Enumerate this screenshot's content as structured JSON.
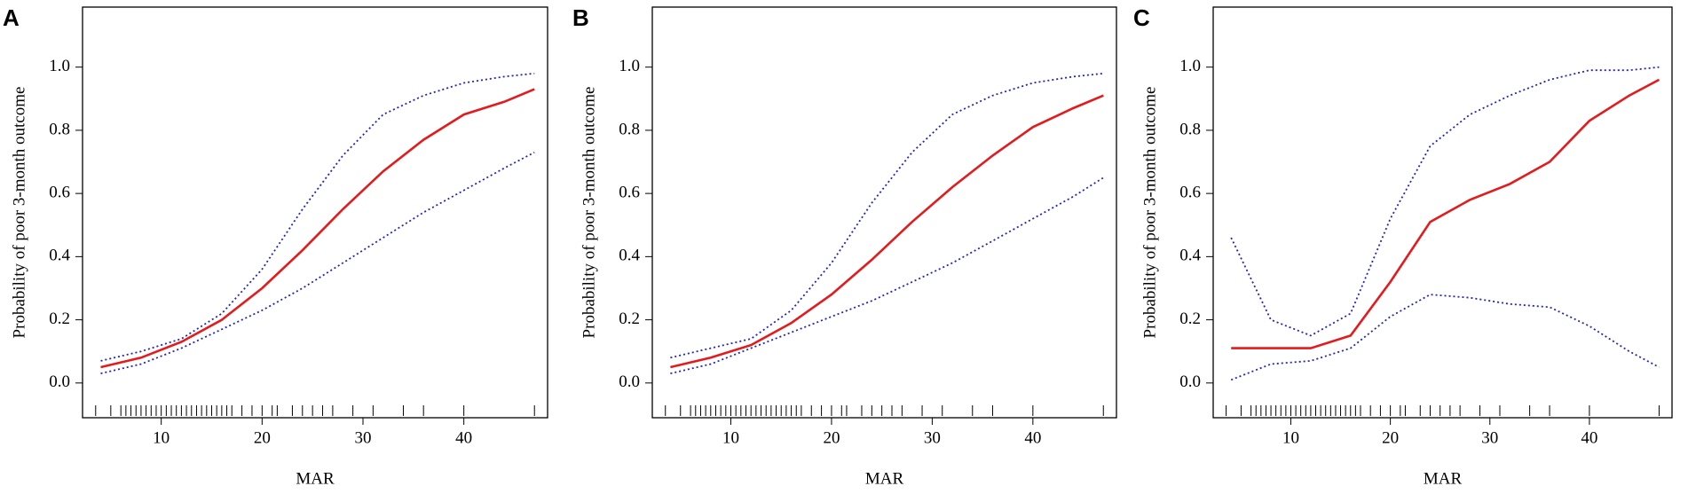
{
  "chart_data": [
    {
      "type": "line",
      "panel": "A",
      "xlabel": "MAR",
      "ylabel": "Probability of poor 3-month outcome",
      "x": [
        4,
        8,
        12,
        16,
        20,
        24,
        28,
        32,
        36,
        40,
        44,
        47
      ],
      "series": [
        {
          "color": "#e41a1c",
          "style": "solid",
          "values": [
            0.05,
            0.08,
            0.13,
            0.2,
            0.3,
            0.42,
            0.55,
            0.67,
            0.77,
            0.85,
            0.89,
            0.93
          ]
        },
        {
          "color": "#2222cc",
          "style": "dotted",
          "values": [
            0.07,
            0.1,
            0.14,
            0.22,
            0.36,
            0.55,
            0.72,
            0.85,
            0.91,
            0.95,
            0.97,
            0.98
          ]
        },
        {
          "color": "#2222cc",
          "style": "dotted",
          "values": [
            0.03,
            0.06,
            0.11,
            0.17,
            0.23,
            0.3,
            0.38,
            0.46,
            0.54,
            0.61,
            0.68,
            0.73
          ]
        }
      ],
      "rug": [
        3.5,
        5,
        6,
        6.5,
        7,
        7.5,
        8,
        8.5,
        9,
        9.5,
        10,
        10.5,
        11,
        11.5,
        12,
        12.5,
        13,
        13.5,
        14,
        14.5,
        15,
        15.5,
        16,
        16.5,
        17,
        18,
        19,
        20,
        21,
        21.5,
        23,
        24,
        25,
        26,
        27,
        29,
        31,
        34,
        36,
        40,
        47
      ],
      "xlim": [
        2.2,
        48.3
      ],
      "ylim": [
        -0.11,
        1.19
      ],
      "xticks": [
        10,
        20,
        30,
        40
      ],
      "yticks": [
        {
          "value": 0,
          "label": "0.0"
        },
        0.2,
        0.4,
        0.6,
        0.8,
        {
          "value": 1,
          "label": "1.0"
        }
      ]
    },
    {
      "type": "line",
      "panel": "B",
      "xlabel": "MAR",
      "ylabel": "Probability of poor 3-month outcome",
      "x": [
        4,
        8,
        12,
        16,
        20,
        24,
        28,
        32,
        36,
        40,
        44,
        47
      ],
      "series": [
        {
          "color": "#e41a1c",
          "style": "solid",
          "values": [
            0.05,
            0.08,
            0.12,
            0.19,
            0.28,
            0.39,
            0.51,
            0.62,
            0.72,
            0.81,
            0.87,
            0.91
          ]
        },
        {
          "color": "#2222cc",
          "style": "dotted",
          "values": [
            0.08,
            0.11,
            0.14,
            0.23,
            0.38,
            0.57,
            0.73,
            0.85,
            0.91,
            0.95,
            0.97,
            0.98
          ]
        },
        {
          "color": "#2222cc",
          "style": "dotted",
          "values": [
            0.03,
            0.06,
            0.11,
            0.16,
            0.21,
            0.26,
            0.32,
            0.38,
            0.45,
            0.52,
            0.59,
            0.65
          ]
        }
      ],
      "rug": [
        3.5,
        5,
        6,
        6.5,
        7,
        7.5,
        8,
        8.5,
        9,
        9.5,
        10,
        10.5,
        11,
        11.5,
        12,
        12.5,
        13,
        13.5,
        14,
        14.5,
        15,
        15.5,
        16,
        16.5,
        17,
        18,
        19,
        20,
        21,
        21.5,
        23,
        24,
        25,
        26,
        27,
        29,
        31,
        34,
        36,
        40,
        47
      ],
      "xlim": [
        2.2,
        48.3
      ],
      "ylim": [
        -0.11,
        1.19
      ],
      "xticks": [
        10,
        20,
        30,
        40
      ],
      "yticks": [
        {
          "value": 0,
          "label": "0.0"
        },
        0.2,
        0.4,
        0.6,
        0.8,
        {
          "value": 1,
          "label": "1.0"
        }
      ]
    },
    {
      "type": "line",
      "panel": "C",
      "xlabel": "MAR",
      "ylabel": "Probability of poor 3-month outcome",
      "x": [
        4,
        8,
        12,
        16,
        20,
        24,
        28,
        32,
        36,
        40,
        44,
        47
      ],
      "series": [
        {
          "color": "#e41a1c",
          "style": "solid",
          "values": [
            0.11,
            0.11,
            0.11,
            0.15,
            0.32,
            0.51,
            0.58,
            0.63,
            0.7,
            0.83,
            0.91,
            0.96
          ]
        },
        {
          "color": "#2222cc",
          "style": "dotted",
          "values": [
            0.46,
            0.2,
            0.15,
            0.22,
            0.52,
            0.75,
            0.85,
            0.91,
            0.96,
            0.99,
            0.99,
            1.0
          ]
        },
        {
          "color": "#2222cc",
          "style": "dotted",
          "values": [
            0.01,
            0.06,
            0.07,
            0.11,
            0.21,
            0.28,
            0.27,
            0.25,
            0.24,
            0.18,
            0.1,
            0.05
          ]
        }
      ],
      "rug": [
        3.5,
        5,
        6,
        6.5,
        7,
        7.5,
        8,
        8.5,
        9,
        9.5,
        10,
        10.5,
        11,
        11.5,
        12,
        12.5,
        13,
        13.5,
        14,
        14.5,
        15,
        15.5,
        16,
        16.5,
        17,
        18,
        19,
        20,
        21,
        21.5,
        23,
        24,
        25,
        26,
        27,
        29,
        31,
        34,
        36,
        40,
        47
      ],
      "xlim": [
        2.2,
        48.3
      ],
      "ylim": [
        -0.11,
        1.19
      ],
      "xticks": [
        10,
        20,
        30,
        40
      ],
      "yticks": [
        {
          "value": 0,
          "label": "0.0"
        },
        0.2,
        0.4,
        0.6,
        0.8,
        {
          "value": 1,
          "label": "1.0"
        }
      ]
    }
  ]
}
